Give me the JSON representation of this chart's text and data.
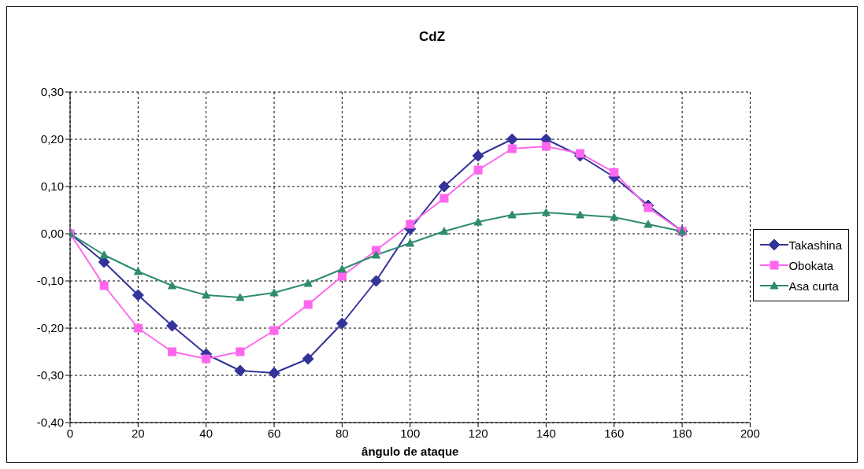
{
  "chart_data": {
    "type": "line",
    "title": "CdZ",
    "xlabel": "ângulo de ataque",
    "x": [
      0,
      10,
      20,
      30,
      40,
      50,
      60,
      70,
      80,
      90,
      100,
      110,
      120,
      130,
      140,
      150,
      160,
      170,
      180
    ],
    "series": [
      {
        "name": "Takashina",
        "color": "#333399",
        "marker": "diamond",
        "values": [
          0,
          -0.06,
          -0.13,
          -0.195,
          -0.255,
          -0.29,
          -0.295,
          -0.265,
          -0.19,
          -0.1,
          0.01,
          0.1,
          0.165,
          0.2,
          0.2,
          0.165,
          0.12,
          0.06,
          0.005
        ]
      },
      {
        "name": "Obokata",
        "color": "#ff66ee",
        "marker": "square",
        "values": [
          0,
          -0.11,
          -0.2,
          -0.25,
          -0.265,
          -0.25,
          -0.205,
          -0.15,
          -0.09,
          -0.035,
          0.02,
          0.075,
          0.135,
          0.18,
          0.185,
          0.17,
          0.13,
          0.055,
          0.005
        ]
      },
      {
        "name": "Asa curta",
        "color": "#2e8b6e",
        "marker": "triangle",
        "values": [
          0,
          -0.045,
          -0.08,
          -0.11,
          -0.13,
          -0.135,
          -0.125,
          -0.105,
          -0.075,
          -0.045,
          -0.02,
          0.005,
          0.025,
          0.04,
          0.045,
          0.04,
          0.035,
          0.02,
          0.005
        ]
      }
    ],
    "xlim": [
      0,
      200
    ],
    "xticks": [
      0,
      20,
      40,
      60,
      80,
      100,
      120,
      140,
      160,
      180,
      200
    ],
    "ylim": [
      -0.4,
      0.3
    ],
    "yticks": [
      {
        "value": -0.4,
        "label": "-0,40"
      },
      {
        "value": -0.3,
        "label": "-0,30"
      },
      {
        "value": -0.2,
        "label": "-0,20"
      },
      {
        "value": -0.1,
        "label": "-0,10"
      },
      {
        "value": 0,
        "label": "0,00"
      },
      {
        "value": 0.1,
        "label": "0,10"
      },
      {
        "value": 0.2,
        "label": "0,20"
      },
      {
        "value": 0.3,
        "label": "0,30"
      }
    ],
    "grid": true,
    "legend": "right",
    "line_style": "solid"
  }
}
